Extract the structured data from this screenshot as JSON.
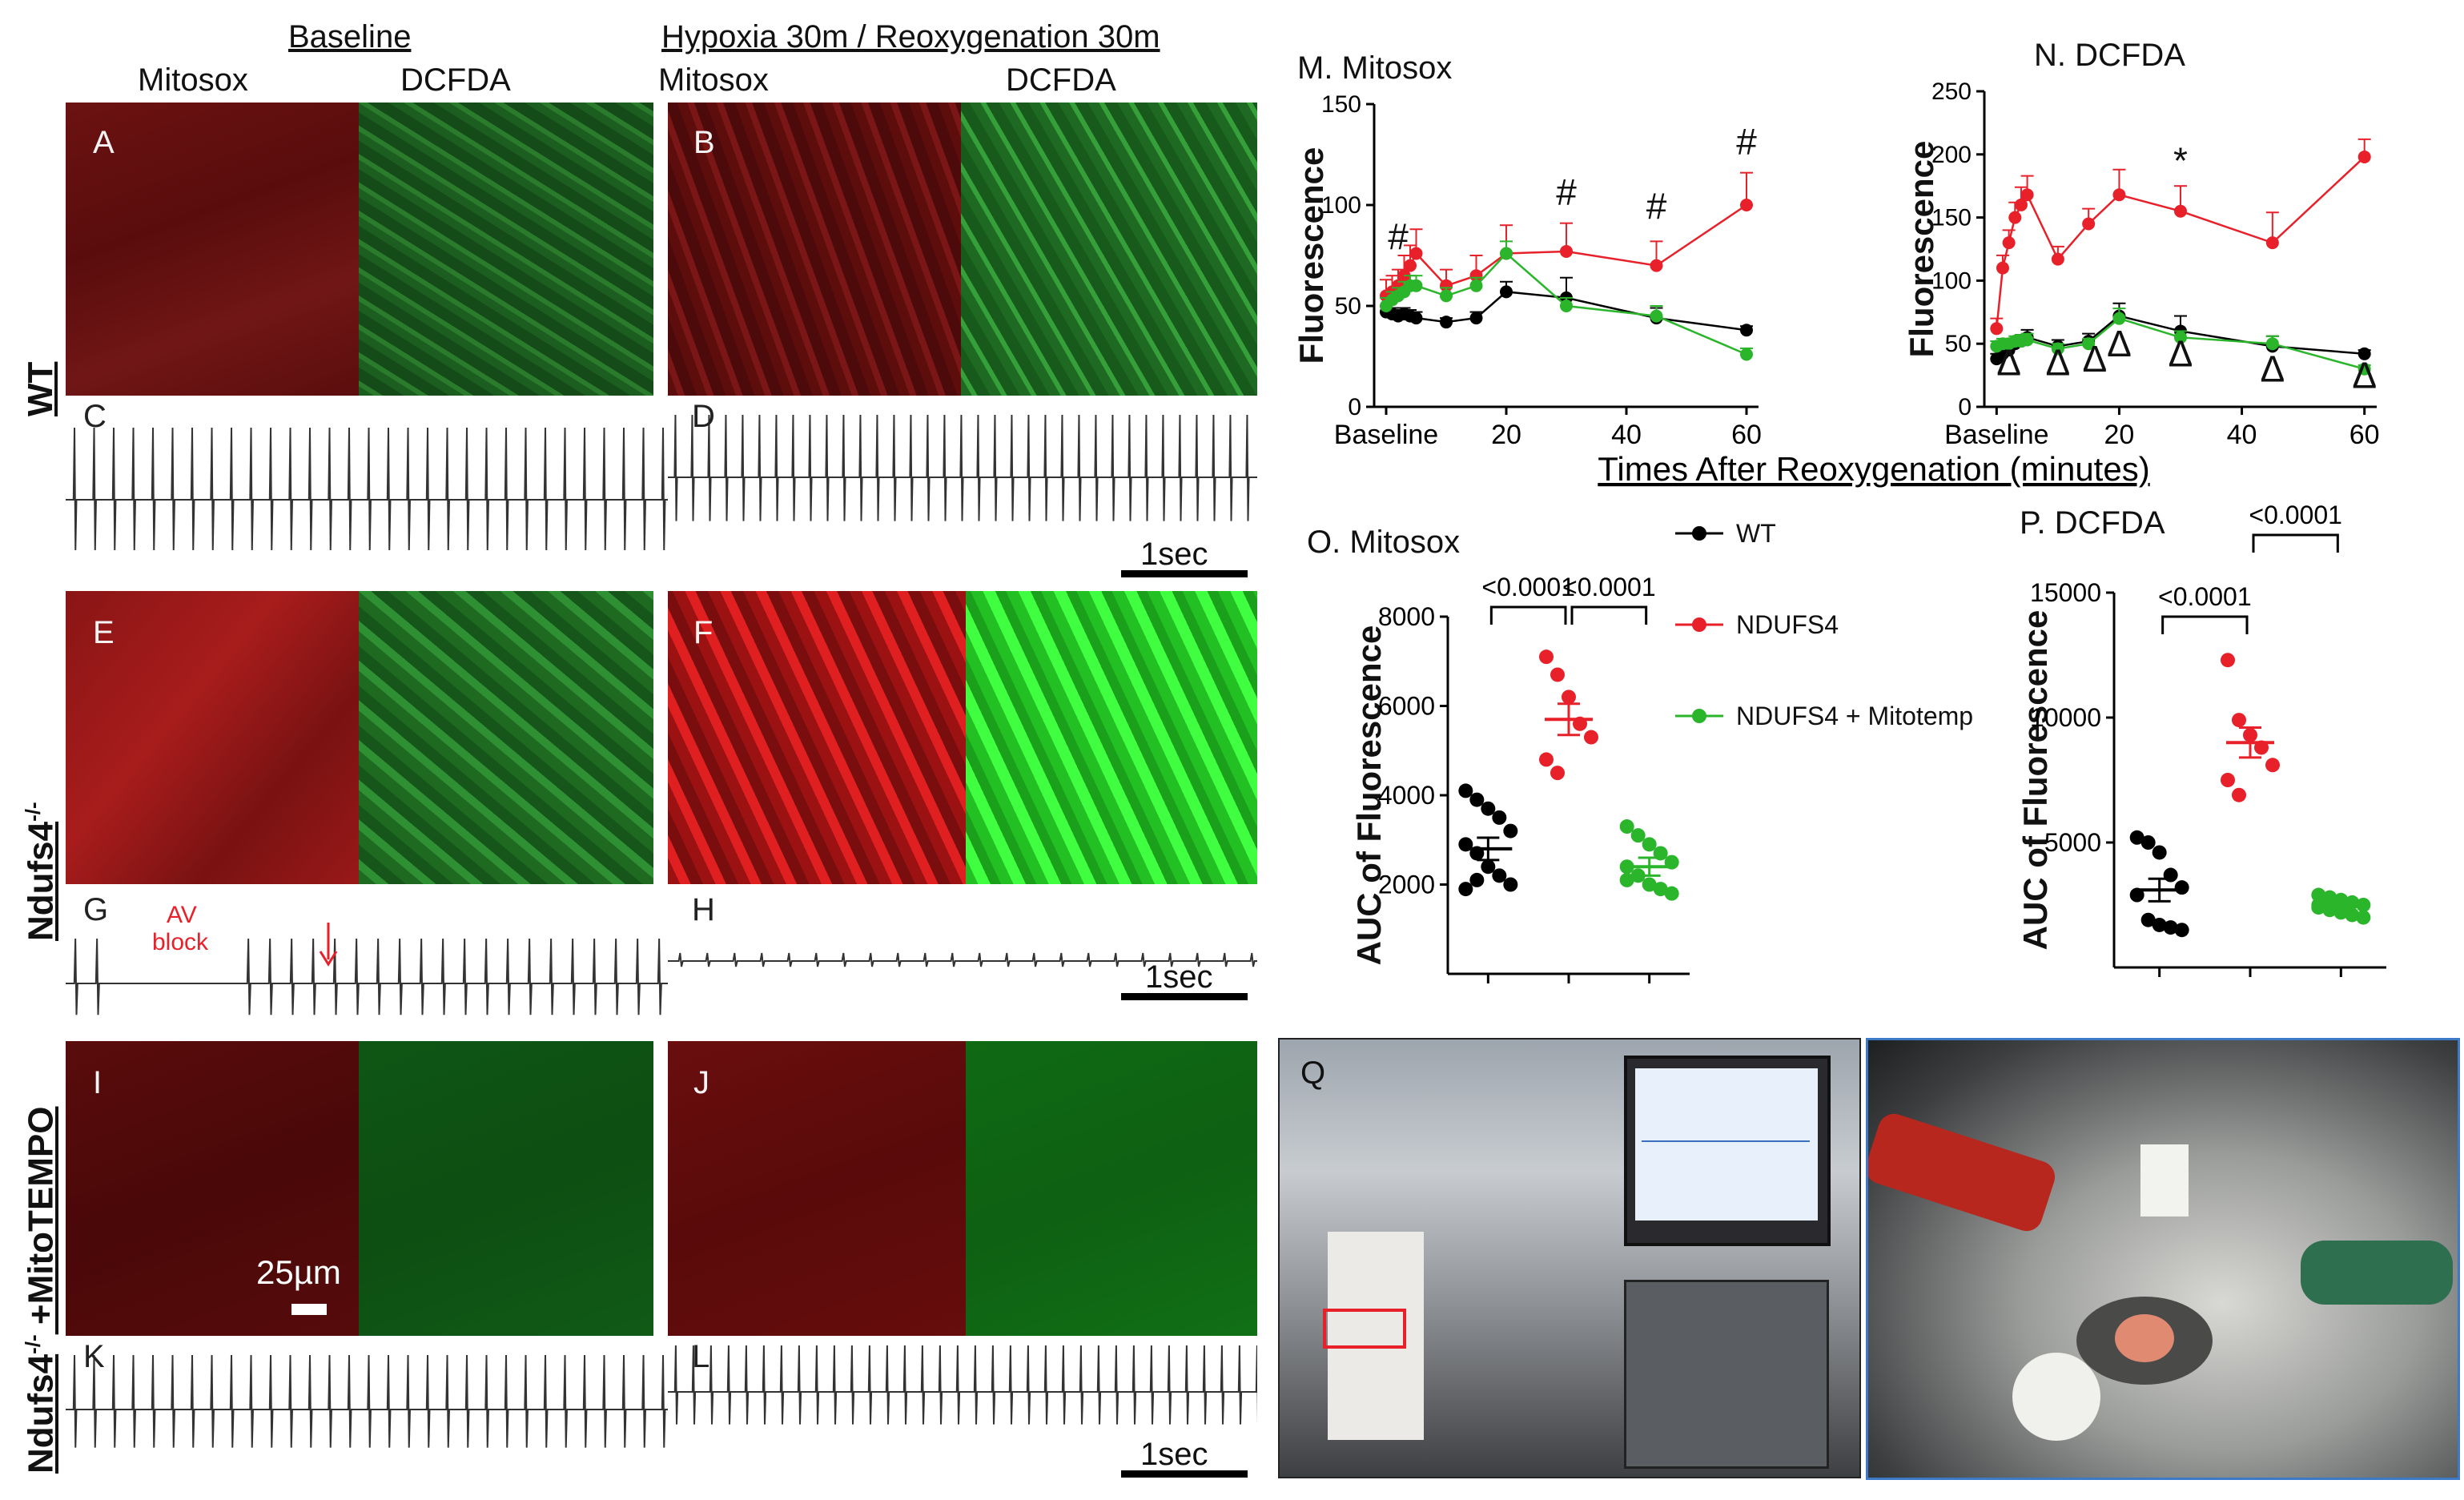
{
  "headers": {
    "baseline": "Baseline",
    "hr": "Hypoxia 30m / Reoxygenation 30m",
    "mitosox_1": "Mitosox",
    "dcfda_1": "DCFDA",
    "mitosox_2": "Mitosox",
    "dcfda_2": "DCFDA"
  },
  "row_labels": {
    "wt": "WT",
    "ndufs4": "Ndufs4",
    "ndufs4_sup": "-/-",
    "mito_pre": "Ndufs4",
    "mito_sup": "-/-",
    "mito_post": " +MitoTEMPO"
  },
  "panel_letters": [
    "A",
    "B",
    "C",
    "D",
    "E",
    "F",
    "G",
    "H",
    "I",
    "J",
    "K",
    "L",
    "Q"
  ],
  "annotations": {
    "av_block": [
      "AV",
      "block"
    ],
    "scale_bar": "25µm",
    "one_sec": "1sec"
  },
  "colors": {
    "wt": "#000000",
    "ndufs4": "#e8202a",
    "mitotemp": "#2ab52a",
    "mitosox_dark": "#6b1010",
    "dcfda_dark": "#0f5a14"
  },
  "chart_data": [
    {
      "type": "line",
      "title": "M. Mitosox",
      "ylabel": "Fluorescence",
      "ylim": [
        0,
        150
      ],
      "yticks": [
        0,
        50,
        100,
        150
      ],
      "xlim": [
        -2,
        62
      ],
      "xtick_labels": [
        {
          "x": 0,
          "label": "Baseline"
        },
        {
          "x": 20,
          "label": "20"
        },
        {
          "x": 40,
          "label": "40"
        },
        {
          "x": 60,
          "label": "60"
        }
      ],
      "series": [
        {
          "name": "WT",
          "x": [
            0,
            1,
            2,
            3,
            4,
            5,
            10,
            15,
            20,
            30,
            45,
            60
          ],
          "y": [
            47,
            46,
            45,
            46,
            45,
            44,
            42,
            44,
            57,
            54,
            44,
            38
          ],
          "err": [
            3,
            3,
            3,
            3,
            3,
            3,
            2,
            3,
            5,
            10,
            5,
            2
          ]
        },
        {
          "name": "NDUFS4",
          "x": [
            0,
            1,
            2,
            3,
            4,
            5,
            10,
            15,
            20,
            30,
            45,
            60
          ],
          "y": [
            55,
            57,
            60,
            65,
            70,
            76,
            60,
            65,
            76,
            77,
            70,
            100
          ],
          "err": [
            8,
            8,
            8,
            10,
            10,
            12,
            8,
            10,
            14,
            14,
            12,
            16
          ]
        },
        {
          "name": "NDUFS4 + Mitotemp",
          "x": [
            0,
            1,
            2,
            3,
            4,
            5,
            10,
            15,
            20,
            30,
            45,
            60
          ],
          "y": [
            50,
            53,
            55,
            57,
            60,
            60,
            55,
            60,
            76,
            50,
            45,
            26
          ],
          "err": [
            4,
            4,
            4,
            5,
            5,
            5,
            4,
            4,
            6,
            4,
            5,
            3
          ]
        }
      ],
      "markers": [
        {
          "x": 2,
          "y": 78,
          "label": "#"
        },
        {
          "x": 30,
          "y": 100,
          "label": "#"
        },
        {
          "x": 45,
          "y": 93,
          "label": "#"
        },
        {
          "x": 60,
          "y": 125,
          "label": "#"
        }
      ]
    },
    {
      "type": "line",
      "title": "N. DCFDA",
      "ylabel": "Fluorescence",
      "ylim": [
        0,
        250
      ],
      "yticks": [
        0,
        50,
        100,
        150,
        200,
        250
      ],
      "xlim": [
        -2,
        62
      ],
      "xtick_labels": [
        {
          "x": 0,
          "label": "Baseline"
        },
        {
          "x": 20,
          "label": "20"
        },
        {
          "x": 40,
          "label": "40"
        },
        {
          "x": 60,
          "label": "60"
        }
      ],
      "shared_xlabel": "Times After Reoxygenation (minutes)",
      "series": [
        {
          "name": "WT",
          "x": [
            0,
            1,
            2,
            3,
            4,
            5,
            10,
            15,
            20,
            30,
            45,
            60
          ],
          "y": [
            38,
            42,
            45,
            50,
            52,
            55,
            48,
            52,
            72,
            60,
            48,
            42
          ],
          "err": [
            4,
            4,
            4,
            4,
            5,
            6,
            5,
            6,
            10,
            12,
            8,
            3
          ]
        },
        {
          "name": "NDUFS4",
          "x": [
            0,
            1,
            2,
            3,
            4,
            5,
            10,
            15,
            20,
            30,
            45,
            60
          ],
          "y": [
            62,
            110,
            130,
            150,
            160,
            168,
            117,
            145,
            168,
            155,
            130,
            198
          ],
          "err": [
            8,
            10,
            10,
            12,
            14,
            15,
            10,
            12,
            20,
            20,
            24,
            14
          ]
        },
        {
          "name": "NDUFS4 + Mitotemp",
          "x": [
            0,
            1,
            2,
            3,
            4,
            5,
            10,
            15,
            20,
            30,
            45,
            60
          ],
          "y": [
            48,
            50,
            50,
            52,
            52,
            53,
            46,
            50,
            70,
            55,
            50,
            30
          ],
          "err": [
            4,
            4,
            4,
            4,
            5,
            5,
            4,
            4,
            8,
            5,
            6,
            3
          ]
        }
      ],
      "markers": [
        {
          "x": 30,
          "y": 185,
          "label": "*"
        },
        {
          "x": 2,
          "y": 25,
          "label": "Δ"
        },
        {
          "x": 10,
          "y": 25,
          "label": "Δ"
        },
        {
          "x": 16,
          "y": 28,
          "label": "Δ"
        },
        {
          "x": 20,
          "y": 40,
          "label": "Δ"
        },
        {
          "x": 30,
          "y": 32,
          "label": "Δ"
        },
        {
          "x": 45,
          "y": 20,
          "label": "Δ"
        },
        {
          "x": 60,
          "y": 15,
          "label": "Δ"
        }
      ]
    },
    {
      "type": "scatter",
      "title": "O. Mitosox",
      "ylabel": "AUC of Fluorescence",
      "ylim": [
        0,
        8000
      ],
      "yticks": [
        2000,
        4000,
        6000,
        8000
      ],
      "categories": [
        "WT",
        "NDUFS4",
        "NDUFS4 + Mitotemp"
      ],
      "groups": [
        {
          "name": "WT",
          "points": [
            4100,
            3900,
            3700,
            3500,
            3200,
            2900,
            2700,
            2400,
            2200,
            2000,
            1900,
            2100
          ],
          "mean": 2800,
          "sem": 250
        },
        {
          "name": "NDUFS4",
          "points": [
            7100,
            6700,
            6200,
            5600,
            5300,
            4800,
            4500
          ],
          "mean": 5700,
          "sem": 350
        },
        {
          "name": "NDUFS4 + Mitotemp",
          "points": [
            3300,
            3100,
            2900,
            2700,
            2500,
            2400,
            2200,
            2000,
            1900,
            1800,
            2100
          ],
          "mean": 2400,
          "sem": 200
        }
      ],
      "comparisons": [
        {
          "from": 0,
          "to": 1,
          "label": "<0.0001"
        },
        {
          "from": 1,
          "to": 2,
          "label": "<0.0001"
        }
      ],
      "legend": [
        "WT",
        "NDUFS4",
        "NDUFS4 + Mitotemp"
      ]
    },
    {
      "type": "scatter",
      "title": "P. DCFDA",
      "ylabel": "AUC of Fluorescence",
      "ylim": [
        0,
        15000
      ],
      "yticks": [
        5000,
        10000,
        15000
      ],
      "categories": [
        "WT",
        "NDUFS4",
        "NDUFS4 + Mitotemp"
      ],
      "groups": [
        {
          "name": "WT",
          "points": [
            5200,
            5000,
            4600,
            3700,
            3200,
            2900,
            1900,
            1700,
            1600,
            1500
          ],
          "mean": 3100,
          "sem": 450
        },
        {
          "name": "NDUFS4",
          "points": [
            12300,
            9900,
            9300,
            8800,
            8100,
            7500,
            6900
          ],
          "mean": 9000,
          "sem": 600
        },
        {
          "name": "NDUFS4 + Mitotemp",
          "points": [
            2900,
            2800,
            2700,
            2600,
            2500,
            2400,
            2300,
            2200,
            2100,
            2000,
            2500,
            2600
          ],
          "mean": 2450,
          "sem": 100
        }
      ],
      "comparisons": [
        {
          "from": 0,
          "to": 1,
          "label": "<0.0001"
        },
        {
          "from": 1,
          "to": 2,
          "label": "<0.0001"
        }
      ]
    }
  ]
}
